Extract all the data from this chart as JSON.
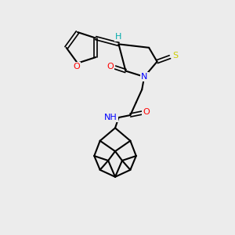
{
  "bg_color": "#ececec",
  "bond_color": "#000000",
  "atom_colors": {
    "O": "#ff0000",
    "N": "#0000ff",
    "S_thione": "#cccc00",
    "S_ring": "#000000",
    "H": "#00aaaa",
    "C": "#000000"
  },
  "title": "",
  "figsize": [
    3.0,
    3.0
  ],
  "dpi": 100
}
